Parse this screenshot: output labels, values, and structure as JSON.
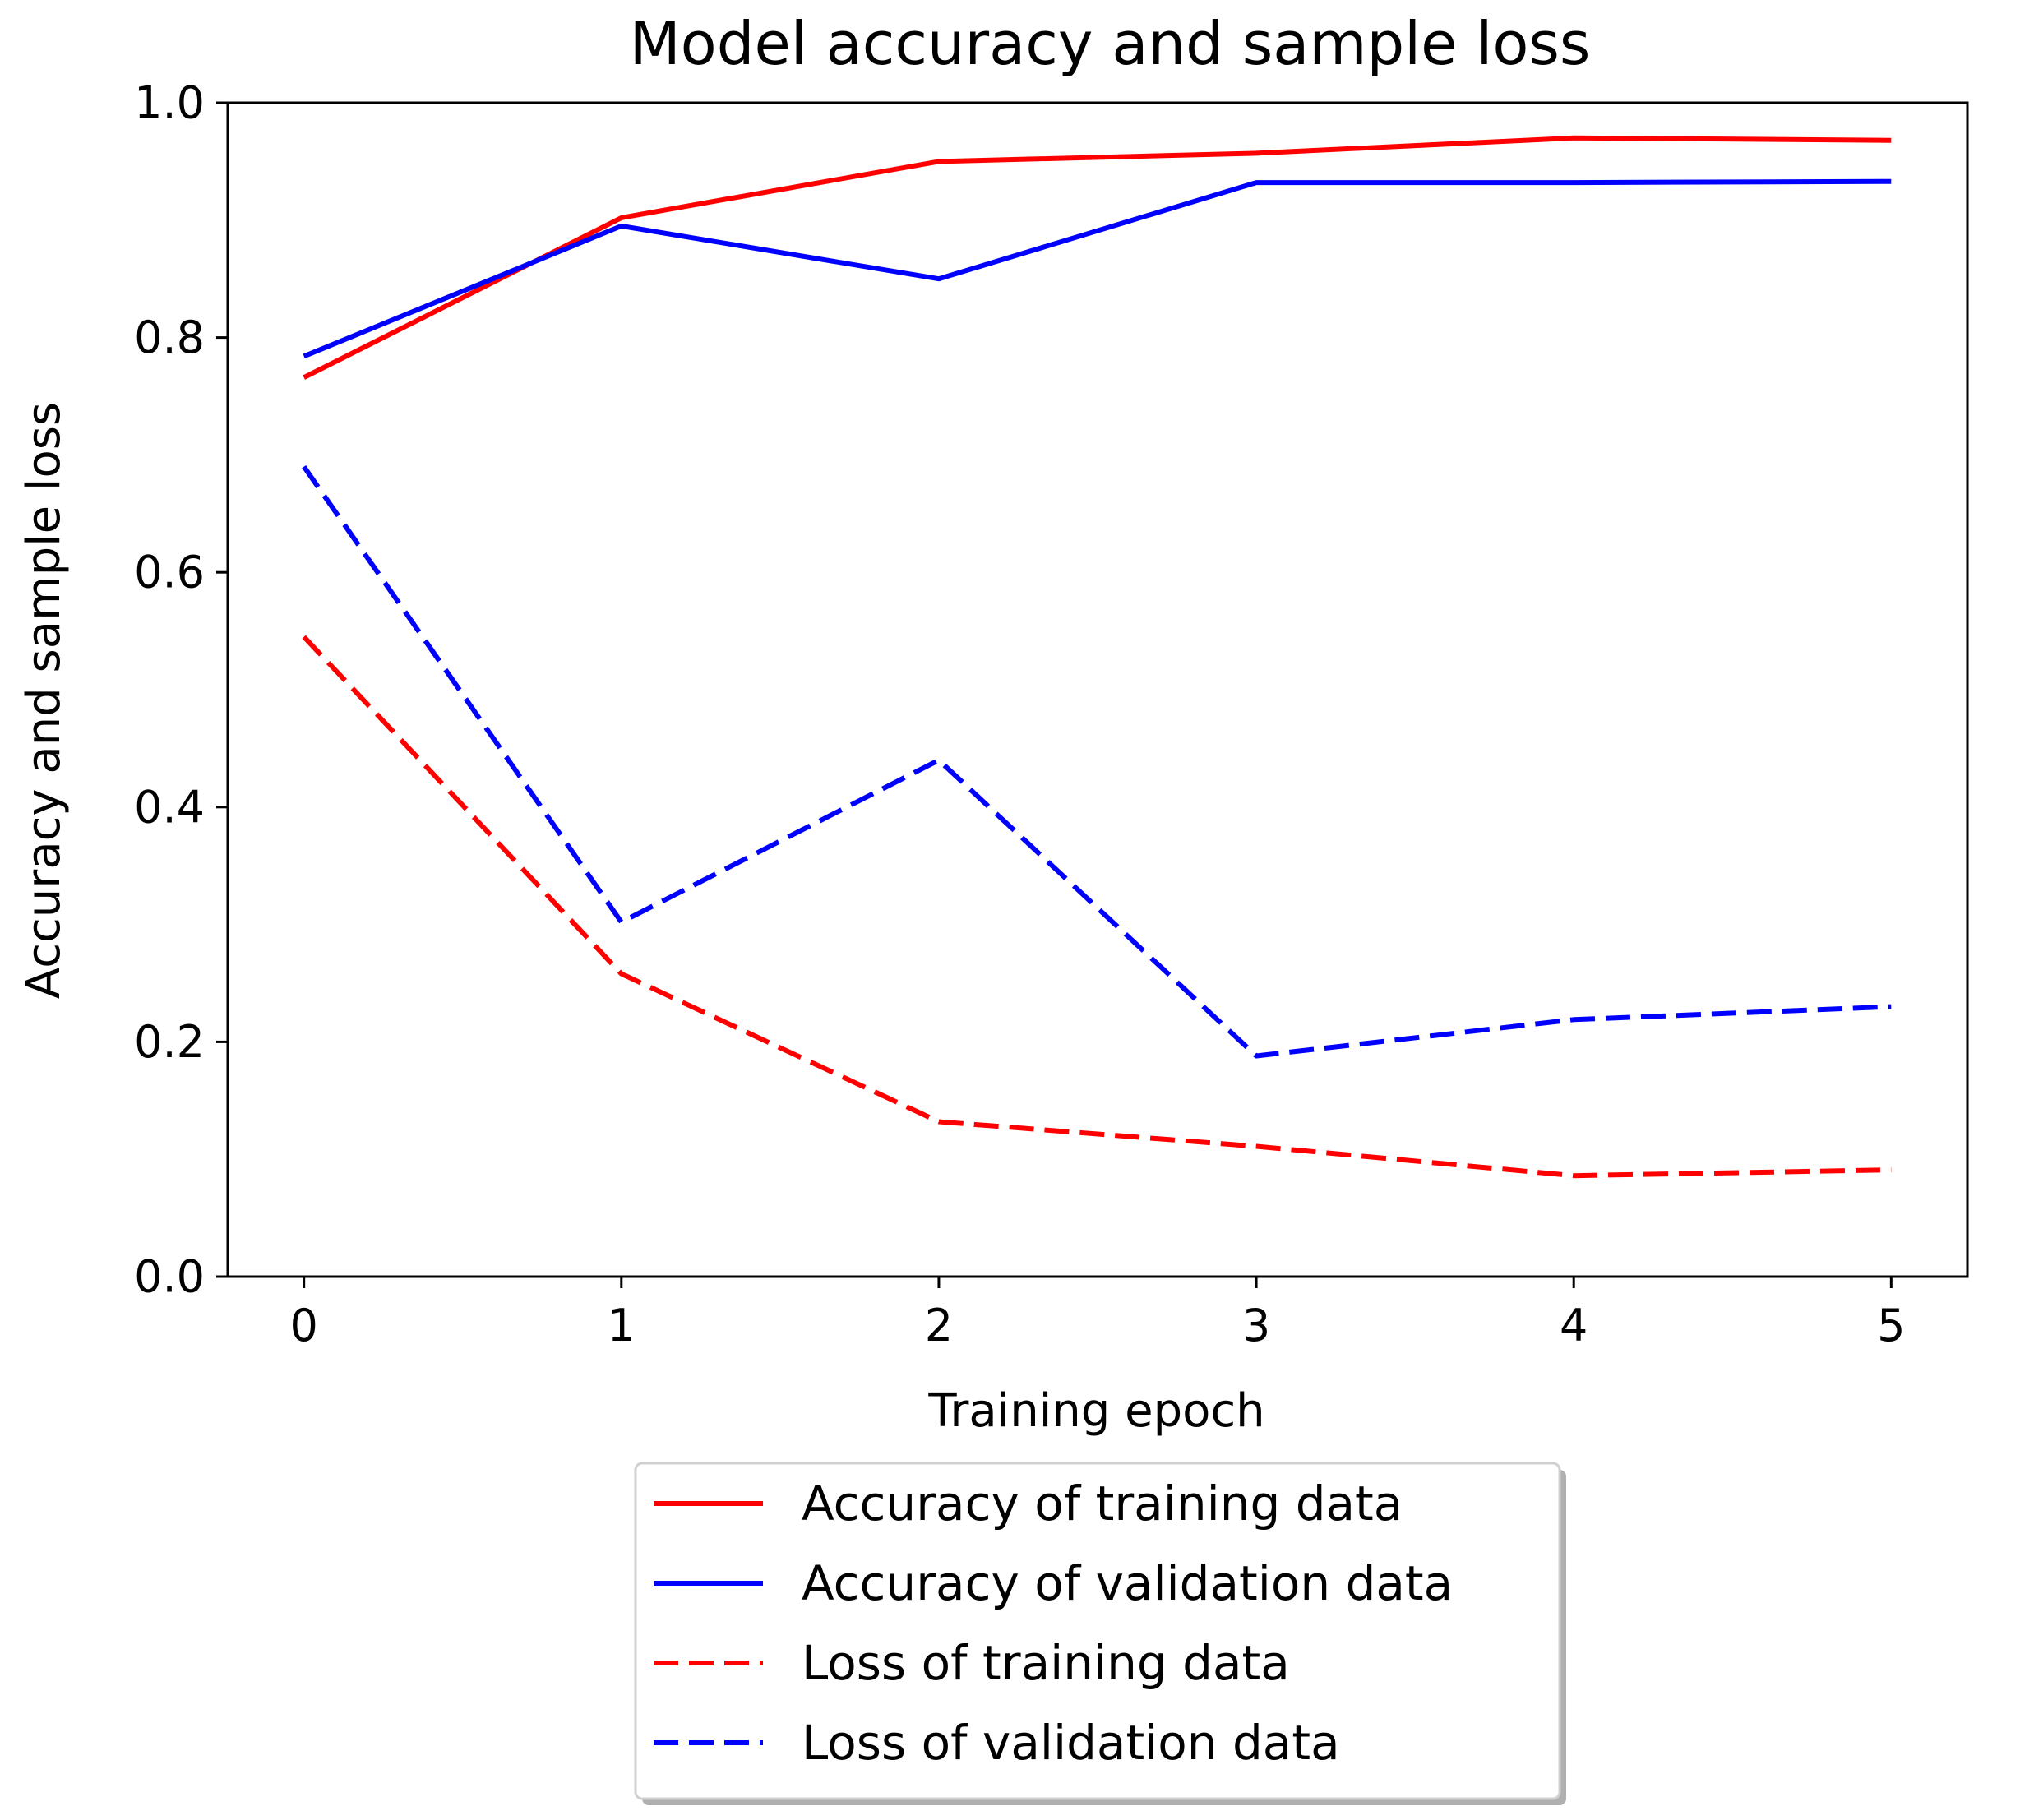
{
  "chart_data": {
    "type": "line",
    "title": "Model accuracy and sample loss",
    "xlabel": "Training epoch",
    "ylabel": "Accuracy and sample loss",
    "x": [
      0,
      1,
      2,
      3,
      4,
      5
    ],
    "xlim": [
      -0.24,
      5.24
    ],
    "ylim": [
      0.0,
      1.0
    ],
    "x_ticks": [
      "0",
      "1",
      "2",
      "3",
      "4",
      "5"
    ],
    "y_ticks": [
      "0.0",
      "0.2",
      "0.4",
      "0.6",
      "0.8",
      "1.0"
    ],
    "grid": false,
    "legend_position": "below",
    "series": [
      {
        "name": "Accuracy of training data",
        "color": "#ff0000",
        "line_style": "solid",
        "values": [
          0.766,
          0.902,
          0.95,
          0.957,
          0.97,
          0.968
        ]
      },
      {
        "name": "Accuracy of validation data",
        "color": "#0000ff",
        "line_style": "solid",
        "values": [
          0.784,
          0.895,
          0.85,
          0.932,
          0.932,
          0.933
        ]
      },
      {
        "name": "Loss of training data",
        "color": "#ff0000",
        "line_style": "dashed",
        "values": [
          0.545,
          0.258,
          0.132,
          0.111,
          0.086,
          0.091
        ]
      },
      {
        "name": "Loss of validation data",
        "color": "#0000ff",
        "line_style": "dashed",
        "values": [
          0.69,
          0.302,
          0.44,
          0.188,
          0.219,
          0.23
        ]
      }
    ]
  }
}
